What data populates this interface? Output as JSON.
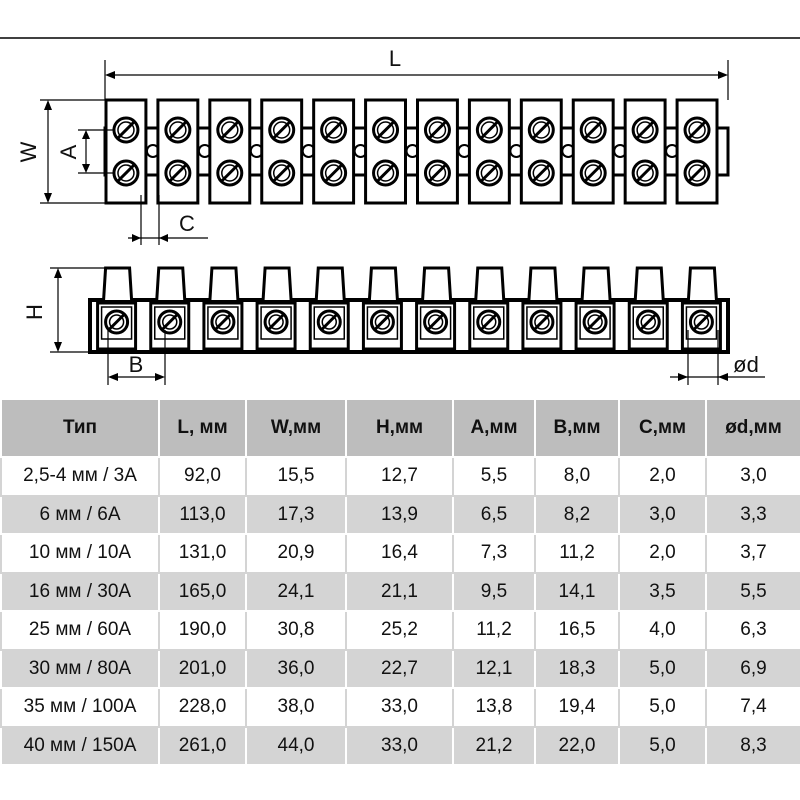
{
  "dimension_labels": {
    "L": "L",
    "W": "W",
    "A": "A",
    "C": "C",
    "H": "H",
    "B": "B",
    "d": "ød"
  },
  "table": {
    "header": [
      "Тип",
      "L, мм",
      "W,мм",
      "H,мм",
      "A,мм",
      "B,мм",
      "C,мм",
      "ød,мм"
    ],
    "rows": [
      [
        "2,5-4 мм / 3А",
        "92,0",
        "15,5",
        "12,7",
        "5,5",
        "8,0",
        "2,0",
        "3,0"
      ],
      [
        "6 мм / 6А",
        "113,0",
        "17,3",
        "13,9",
        "6,5",
        "8,2",
        "3,0",
        "3,3"
      ],
      [
        "10 мм / 10А",
        "131,0",
        "20,9",
        "16,4",
        "7,3",
        "11,2",
        "2,0",
        "3,7"
      ],
      [
        "16 мм / 30А",
        "165,0",
        "24,1",
        "21,1",
        "9,5",
        "14,1",
        "3,5",
        "5,5"
      ],
      [
        "25 мм / 60А",
        "190,0",
        "30,8",
        "25,2",
        "11,2",
        "16,5",
        "4,0",
        "6,3"
      ],
      [
        "30 мм / 80А",
        "201,0",
        "36,0",
        "22,7",
        "12,1",
        "18,3",
        "5,0",
        "6,9"
      ],
      [
        "35 мм / 100А",
        "228,0",
        "38,0",
        "33,0",
        "13,8",
        "19,4",
        "5,0",
        "7,4"
      ],
      [
        "40 мм / 150А",
        "261,0",
        "44,0",
        "33,0",
        "21,2",
        "22,0",
        "5,0",
        "8,3"
      ]
    ]
  }
}
